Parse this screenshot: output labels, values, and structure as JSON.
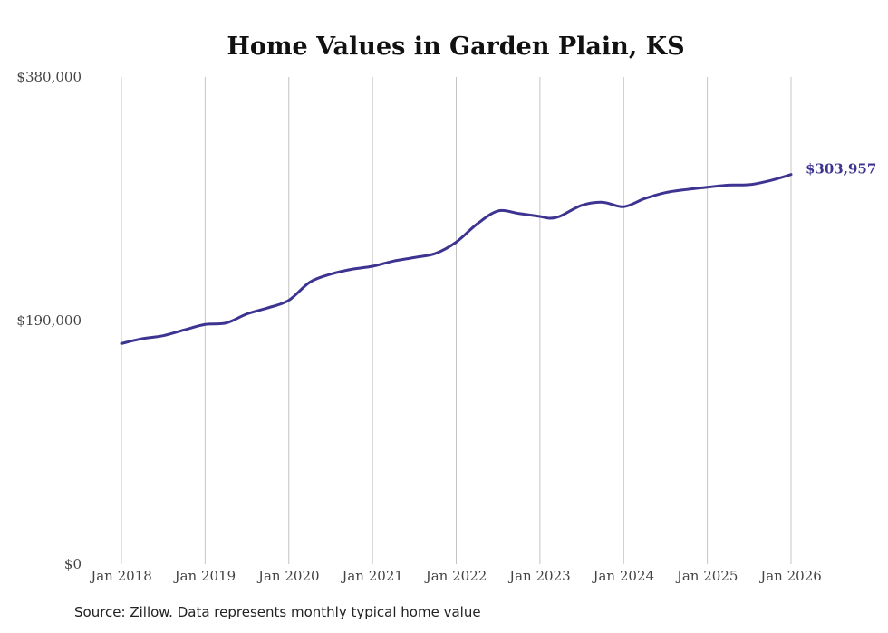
{
  "chart_data": {
    "type": "line",
    "title": "Home Values in Garden Plain, KS",
    "xlabel": "",
    "ylabel": "",
    "ylim": [
      0,
      380000
    ],
    "y_ticks": [
      0,
      190000,
      380000
    ],
    "y_tick_labels": [
      "$0",
      "$190,000",
      "$380,000"
    ],
    "x_range": [
      2018,
      2026
    ],
    "x_tick_labels": [
      "Jan 2018",
      "Jan 2019",
      "Jan 2020",
      "Jan 2021",
      "Jan 2022",
      "Jan 2023",
      "Jan 2024",
      "Jan 2025",
      "Jan 2026"
    ],
    "grid": "vertical",
    "series": [
      {
        "name": "Typical home value",
        "color": "#3d3491",
        "x": [
          2018,
          2018.25,
          2018.5,
          2018.75,
          2019,
          2019.25,
          2019.5,
          2019.75,
          2020,
          2020.25,
          2020.5,
          2020.75,
          2021,
          2021.25,
          2021.5,
          2021.75,
          2022,
          2022.25,
          2022.5,
          2022.75,
          2023,
          2023.12,
          2023.25,
          2023.5,
          2023.75,
          2024,
          2024.25,
          2024.5,
          2024.75,
          2025,
          2025.25,
          2025.5,
          2025.75,
          2026
        ],
        "values": [
          172100,
          175900,
          178200,
          182700,
          187000,
          188100,
          195200,
          199900,
          205800,
          219900,
          226200,
          230000,
          232400,
          236400,
          239200,
          242300,
          251200,
          265400,
          275500,
          273500,
          271200,
          269800,
          271700,
          279900,
          282300,
          278800,
          285100,
          289800,
          292200,
          294000,
          295700,
          296000,
          299200,
          303957
        ]
      }
    ],
    "end_label": "$303,957"
  },
  "source": "Source: Zillow. Data represents monthly typical home value"
}
